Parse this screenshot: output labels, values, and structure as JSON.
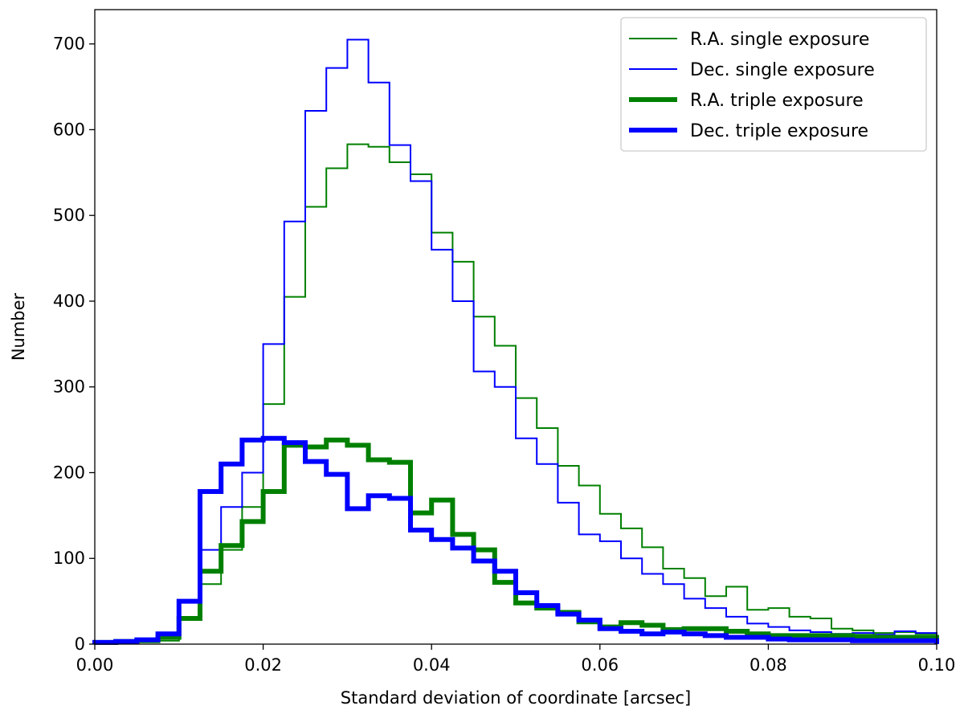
{
  "chart_data": {
    "type": "histogram",
    "title": "",
    "xlabel": "Standard deviation of coordinate [arcsec]",
    "ylabel": "Number",
    "xlim": [
      0.0,
      0.1
    ],
    "ylim": [
      0,
      740
    ],
    "grid": false,
    "legend_position": "top-right",
    "bin_width": 0.0025,
    "bin_edges_start": 0.0,
    "xticks": [
      0.0,
      0.02,
      0.04,
      0.06,
      0.08,
      0.1
    ],
    "xtick_labels": [
      "0.00",
      "0.02",
      "0.04",
      "0.06",
      "0.08",
      "0.10"
    ],
    "yticks": [
      0,
      100,
      200,
      300,
      400,
      500,
      600,
      700
    ],
    "ytick_labels": [
      "0",
      "100",
      "200",
      "300",
      "400",
      "500",
      "600",
      "700"
    ],
    "series": [
      {
        "name": "R.A. single exposure",
        "color": "#008000",
        "linewidth": "thin",
        "values": [
          2,
          2,
          4,
          4,
          30,
          70,
          110,
          160,
          280,
          405,
          510,
          555,
          583,
          580,
          562,
          548,
          480,
          446,
          382,
          348,
          287,
          252,
          208,
          185,
          152,
          135,
          113,
          88,
          77,
          56,
          67,
          40,
          42,
          32,
          30,
          18,
          16,
          13,
          14,
          12
        ]
      },
      {
        "name": "Dec. single exposure",
        "color": "#0000ff",
        "linewidth": "thin",
        "values": [
          2,
          3,
          5,
          10,
          50,
          110,
          160,
          200,
          350,
          493,
          622,
          672,
          705,
          655,
          582,
          540,
          460,
          400,
          318,
          300,
          240,
          210,
          165,
          128,
          120,
          100,
          82,
          70,
          53,
          42,
          32,
          24,
          20,
          16,
          14,
          12,
          13,
          11,
          15,
          13
        ]
      },
      {
        "name": "R.A. triple exposure",
        "color": "#008000",
        "linewidth": "thick",
        "values": [
          2,
          3,
          4,
          8,
          30,
          85,
          115,
          143,
          178,
          232,
          230,
          238,
          232,
          215,
          212,
          153,
          168,
          128,
          110,
          72,
          48,
          42,
          37,
          26,
          20,
          25,
          22,
          17,
          18,
          18,
          15,
          12,
          10,
          10,
          10,
          10,
          9,
          8,
          8,
          8
        ]
      },
      {
        "name": "Dec. triple exposure",
        "color": "#0000ff",
        "linewidth": "thick",
        "values": [
          2,
          3,
          5,
          12,
          50,
          178,
          210,
          238,
          240,
          235,
          213,
          198,
          158,
          173,
          170,
          133,
          122,
          112,
          97,
          85,
          60,
          45,
          35,
          28,
          18,
          15,
          12,
          14,
          12,
          10,
          8,
          8,
          6,
          5,
          5,
          5,
          4,
          4,
          4,
          4
        ]
      }
    ]
  }
}
